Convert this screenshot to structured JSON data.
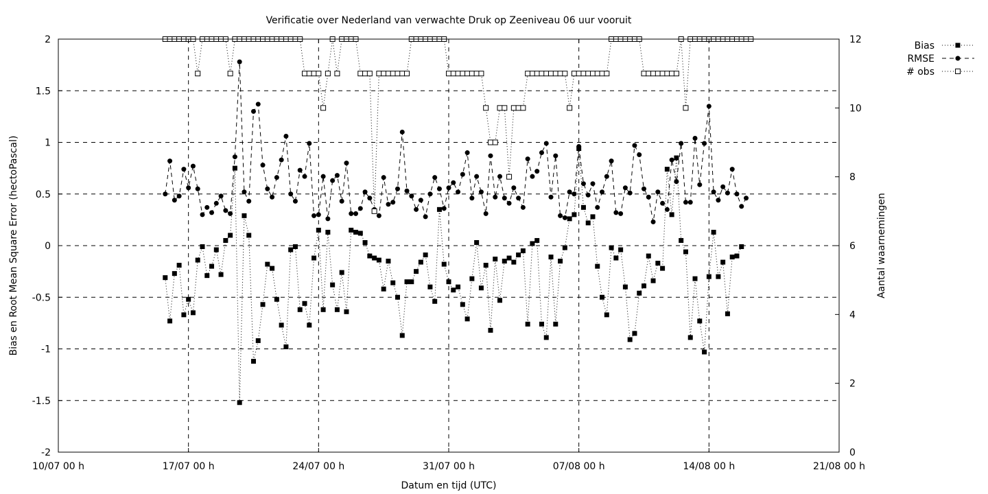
{
  "chart_data": {
    "type": "line",
    "title": "Verificatie over Nederland van verwachte Druk op Zeeniveau 06 uur vooruit",
    "xlabel": "Datum en tijd (UTC)",
    "ylabel": "Bias en Root Mean Square Error (hectoPascal)",
    "y2label": "Aantal waarnemingen",
    "x_start": "2023-07-10T00:00",
    "x_end": "2023-08-21T00:00",
    "x_tick_labels": [
      "10/07 00 h",
      "17/07 00 h",
      "24/07 00 h",
      "31/07 00 h",
      "07/08 00 h",
      "14/08 00 h",
      "21/08 00 h"
    ],
    "ylim": [
      -2,
      2
    ],
    "y_ticks": [
      -2,
      -1.5,
      -1,
      -0.5,
      0,
      0.5,
      1,
      1.5,
      2
    ],
    "y_tick_labels": [
      "-2",
      "-1.5",
      "-1",
      "-0.5",
      "0",
      "0.5",
      "1",
      "1.5",
      "2"
    ],
    "y2lim": [
      0,
      12
    ],
    "y2_ticks": [
      0,
      2,
      4,
      6,
      8,
      10,
      12
    ],
    "y2_tick_labels": [
      "0",
      "2",
      "4",
      "6",
      "8",
      "10",
      "12"
    ],
    "grid": "dashed, major ticks",
    "legend_position": "outside-top-right",
    "series_start": "2023-07-15T18:00",
    "series_step_hours": 6,
    "series": [
      {
        "name": "Bias",
        "axis": "left",
        "line_style": "dotted",
        "marker": "filled-square",
        "values": [
          -0.31,
          -0.73,
          -0.27,
          -0.19,
          -0.67,
          -0.52,
          -0.65,
          -0.14,
          -0.01,
          -0.29,
          -0.2,
          -0.04,
          -0.28,
          0.05,
          0.1,
          0.75,
          -1.52,
          0.29,
          0.1,
          -1.12,
          -0.92,
          -0.57,
          -0.18,
          -0.22,
          -0.52,
          -0.77,
          -0.98,
          -0.04,
          -0.01,
          -0.62,
          -0.56,
          -0.77,
          -0.12,
          0.15,
          -0.62,
          0.13,
          -0.38,
          -0.62,
          -0.26,
          -0.64,
          0.15,
          0.13,
          0.12,
          0.03,
          -0.1,
          -0.12,
          -0.14,
          -0.42,
          -0.15,
          -0.36,
          -0.5,
          -0.87,
          -0.35,
          -0.35,
          -0.25,
          -0.16,
          -0.09,
          -0.4,
          -0.54,
          0.35,
          -0.18,
          -0.35,
          -0.43,
          -0.4,
          -0.57,
          -0.71,
          -0.32,
          0.03,
          -0.41,
          -0.19,
          -0.82,
          -0.13,
          -0.53,
          -0.15,
          -0.12,
          -0.16,
          -0.09,
          -0.05,
          -0.76,
          0.02,
          0.05,
          -0.76,
          -0.89,
          -0.11,
          -0.76,
          -0.15,
          -0.02,
          0.26,
          0.3,
          0.94,
          0.37,
          0.22,
          0.28,
          -0.2,
          -0.5,
          -0.67,
          -0.02,
          -0.12,
          -0.04,
          -0.4,
          -0.91,
          -0.85,
          -0.46,
          -0.39,
          -0.1,
          -0.34,
          -0.17,
          -0.22,
          0.74,
          0.3,
          0.85,
          0.05,
          -0.06,
          -0.89,
          -0.32,
          -0.73,
          -1.03,
          -0.3,
          0.13,
          -0.3,
          -0.16,
          -0.66,
          -0.11,
          -0.1,
          -0.01
        ]
      },
      {
        "name": "RMSE",
        "axis": "left",
        "line_style": "dashed",
        "marker": "filled-circle",
        "values": [
          0.5,
          0.82,
          0.44,
          0.48,
          0.74,
          0.56,
          0.77,
          0.55,
          0.3,
          0.37,
          0.32,
          0.41,
          0.48,
          0.34,
          0.31,
          0.86,
          1.78,
          0.52,
          0.43,
          1.3,
          1.37,
          0.78,
          0.55,
          0.47,
          0.66,
          0.83,
          1.06,
          0.5,
          0.43,
          0.73,
          0.67,
          0.99,
          0.29,
          0.3,
          0.67,
          0.26,
          0.63,
          0.68,
          0.43,
          0.8,
          0.31,
          0.31,
          0.36,
          0.52,
          0.46,
          0.35,
          0.29,
          0.66,
          0.4,
          0.42,
          0.55,
          1.1,
          0.53,
          0.48,
          0.35,
          0.44,
          0.28,
          0.5,
          0.66,
          0.55,
          0.36,
          0.56,
          0.61,
          0.52,
          0.69,
          0.9,
          0.46,
          0.67,
          0.52,
          0.31,
          0.87,
          0.47,
          0.67,
          0.46,
          0.41,
          0.56,
          0.46,
          0.37,
          0.84,
          0.67,
          0.72,
          0.9,
          0.99,
          0.47,
          0.87,
          0.29,
          0.27,
          0.52,
          0.5,
          0.96,
          0.6,
          0.49,
          0.6,
          0.37,
          0.52,
          0.67,
          0.82,
          0.32,
          0.31,
          0.56,
          0.51,
          0.97,
          0.88,
          0.55,
          0.47,
          0.23,
          0.52,
          0.41,
          0.35,
          0.83,
          0.62,
          0.99,
          0.42,
          0.42,
          1.04,
          0.59,
          0.99,
          1.35,
          0.52,
          0.44,
          0.57,
          0.51,
          0.74,
          0.5,
          0.38,
          0.46
        ]
      },
      {
        "name": "# obs",
        "axis": "right",
        "line_style": "dotted",
        "marker": "open-square",
        "values": [
          12,
          12,
          12,
          12,
          12,
          12,
          12,
          11,
          12,
          12,
          12,
          12,
          12,
          12,
          11,
          12,
          12,
          12,
          12,
          12,
          12,
          12,
          12,
          12,
          12,
          12,
          12,
          12,
          12,
          12,
          11,
          11,
          11,
          11,
          10,
          11,
          12,
          11,
          12,
          12,
          12,
          12,
          11,
          11,
          11,
          7,
          11,
          11,
          11,
          11,
          11,
          11,
          11,
          12,
          12,
          12,
          12,
          12,
          12,
          12,
          12,
          11,
          11,
          11,
          11,
          11,
          11,
          11,
          11,
          10,
          9,
          9,
          10,
          10,
          8,
          10,
          10,
          10,
          11,
          11,
          11,
          11,
          11,
          11,
          11,
          11,
          11,
          10,
          11,
          11,
          11,
          11,
          11,
          11,
          11,
          11,
          12,
          12,
          12,
          12,
          12,
          12,
          12,
          11,
          11,
          11,
          11,
          11,
          11,
          11,
          11,
          12,
          10,
          12,
          12,
          12,
          12,
          12,
          12,
          12,
          12,
          12,
          12,
          12,
          12,
          12,
          12
        ]
      }
    ]
  }
}
